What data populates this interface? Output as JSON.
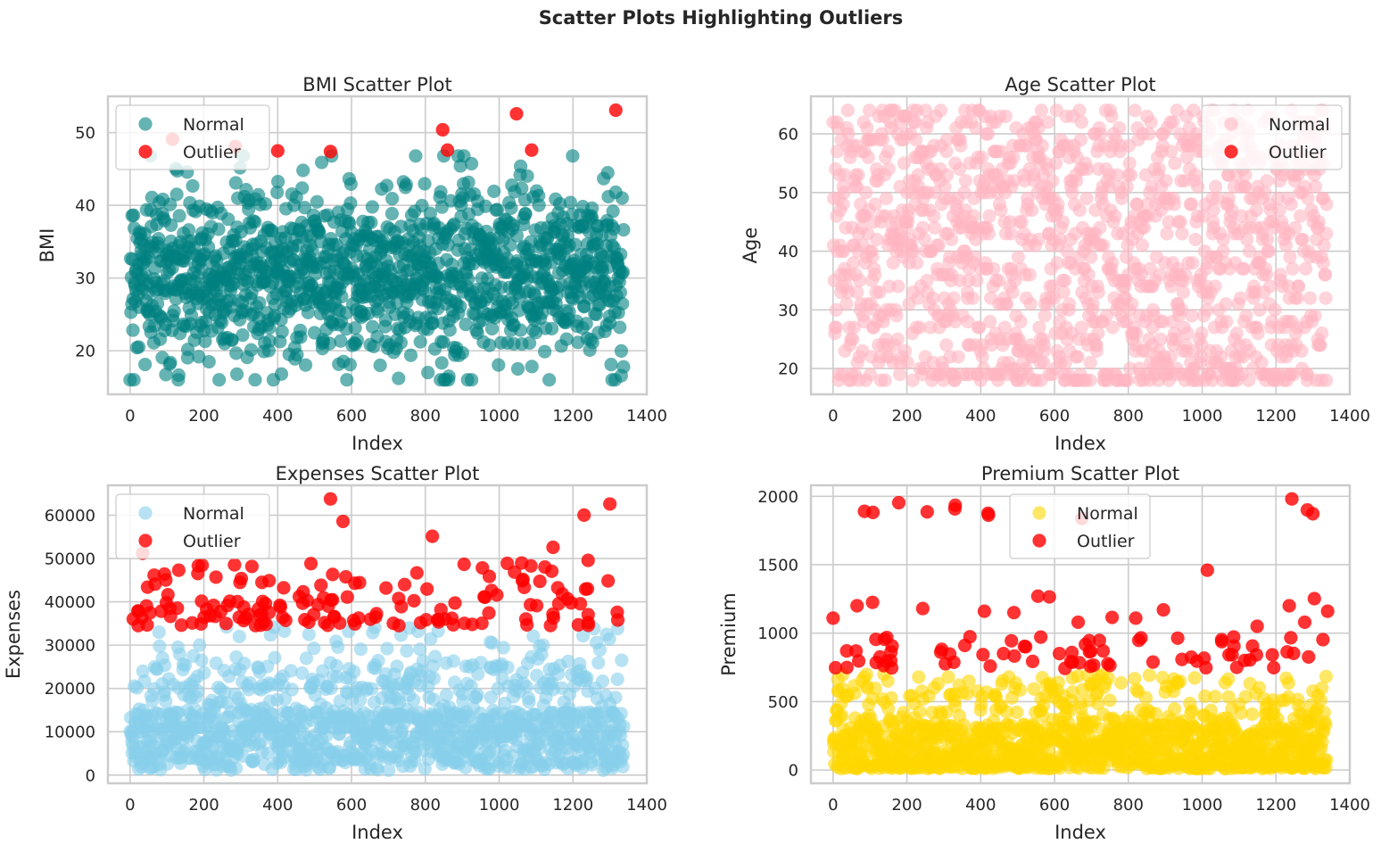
{
  "suptitle": "Scatter Plots Highlighting Outliers",
  "chart_data": [
    {
      "type": "scatter",
      "title": "BMI Scatter Plot",
      "xlabel": "Index",
      "ylabel": "BMI",
      "xlim": [
        -60,
        1400
      ],
      "ylim": [
        14,
        55
      ],
      "xticks": [
        0,
        200,
        400,
        600,
        800,
        1000,
        1200,
        1400
      ],
      "yticks": [
        20,
        30,
        40,
        50
      ],
      "grid": true,
      "legend_position": "upper-left",
      "n_points": 1338,
      "series": [
        {
          "name": "Normal",
          "color": "#008080",
          "alpha": 0.6,
          "sample_points": [
            [
              0,
              33.8
            ],
            [
              20,
              42
            ],
            [
              40,
              31
            ],
            [
              80,
              45
            ],
            [
              120,
              20
            ],
            [
              160,
              16
            ],
            [
              220,
              40
            ],
            [
              290,
              45.5
            ],
            [
              380,
              42
            ],
            [
              420,
              17
            ],
            [
              460,
              47
            ],
            [
              540,
              47
            ],
            [
              560,
              43
            ],
            [
              640,
              42
            ],
            [
              700,
              45
            ],
            [
              820,
              44
            ],
            [
              900,
              20
            ],
            [
              960,
              46
            ],
            [
              1040,
              45.5
            ],
            [
              1100,
              18
            ],
            [
              1160,
              45
            ],
            [
              1220,
              17
            ],
            [
              1300,
              17
            ],
            [
              1330,
              44.5
            ]
          ],
          "y_range_summary": [
            16,
            47
          ]
        },
        {
          "name": "Outlier",
          "color": "#ff0000",
          "alpha": 0.8,
          "points": [
            [
              115,
              49.1
            ],
            [
              285,
              48.1
            ],
            [
              400,
              47.5
            ],
            [
              543,
              47.4
            ],
            [
              847,
              50.4
            ],
            [
              860,
              47.6
            ],
            [
              1047,
              52.6
            ],
            [
              1088,
              47.6
            ],
            [
              1316,
              53.1
            ]
          ]
        }
      ]
    },
    {
      "type": "scatter",
      "title": "Age Scatter Plot",
      "xlabel": "Index",
      "ylabel": "Age",
      "xlim": [
        -60,
        1400
      ],
      "ylim": [
        15.6,
        66.4
      ],
      "xticks": [
        0,
        200,
        400,
        600,
        800,
        1000,
        1200,
        1400
      ],
      "yticks": [
        20,
        30,
        40,
        50,
        60
      ],
      "grid": true,
      "legend_position": "upper-right",
      "n_points": 1338,
      "series": [
        {
          "name": "Normal",
          "color": "#ffb6c1",
          "alpha": 0.6,
          "y_range_summary": [
            18,
            64
          ]
        },
        {
          "name": "Outlier",
          "color": "#ff0000",
          "alpha": 0.8,
          "points": []
        }
      ]
    },
    {
      "type": "scatter",
      "title": "Expenses Scatter Plot",
      "xlabel": "Index",
      "ylabel": "Expenses",
      "xlim": [
        -60,
        1400
      ],
      "ylim": [
        -1900,
        66900
      ],
      "xticks": [
        0,
        200,
        400,
        600,
        800,
        1000,
        1200,
        1400
      ],
      "yticks": [
        0,
        10000,
        20000,
        30000,
        40000,
        50000,
        60000
      ],
      "grid": true,
      "legend_position": "upper-left",
      "n_points": 1338,
      "series": [
        {
          "name": "Normal",
          "color": "#87ceeb",
          "alpha": 0.6,
          "y_range_summary": [
            1100,
            34500
          ]
        },
        {
          "name": "Outlier",
          "color": "#ff0000",
          "alpha": 0.8,
          "points": [
            [
              543,
              63770
            ],
            [
              577,
              58571
            ],
            [
              819,
              55135
            ],
            [
              1146,
              52590
            ],
            [
              1230,
              60021
            ],
            [
              1300,
              62592
            ],
            [
              1241,
              49577
            ],
            [
              34,
              51195
            ],
            [
              490,
              48824
            ],
            [
              283,
              48549
            ],
            [
              330,
              48173
            ],
            [
              905,
              48673
            ],
            [
              1061,
              48970
            ],
            [
              1022,
              48885
            ]
          ],
          "y_range_summary": [
            34500,
            63770
          ]
        }
      ]
    },
    {
      "type": "scatter",
      "title": "Premium Scatter Plot",
      "xlabel": "Index",
      "ylabel": "Premium",
      "xlim": [
        -60,
        1400
      ],
      "ylim": [
        -97,
        2080
      ],
      "xticks": [
        0,
        200,
        400,
        600,
        800,
        1000,
        1200,
        1400
      ],
      "yticks": [
        0,
        500,
        1000,
        1500,
        2000
      ],
      "grid": true,
      "legend_position": "upper-center",
      "n_points": 1338,
      "series": [
        {
          "name": "Normal",
          "color": "#ffd700",
          "alpha": 0.6,
          "y_range_summary": [
            10,
            700
          ]
        },
        {
          "name": "Outlier",
          "color": "#ff0000",
          "alpha": 0.8,
          "points": [
            [
              85,
              1890
            ],
            [
              108,
              1882
            ],
            [
              178,
              1953
            ],
            [
              255,
              1886
            ],
            [
              330,
              1908
            ],
            [
              331,
              1934
            ],
            [
              420,
              1876
            ],
            [
              421,
              1862
            ],
            [
              674,
              1838
            ],
            [
              1014,
              1460
            ],
            [
              1243,
              1981
            ],
            [
              1285,
              1900
            ],
            [
              1300,
              1872
            ],
            [
              1304,
              1252
            ],
            [
              1236,
              1200
            ],
            [
              1340,
              1160
            ],
            [
              0,
              1110
            ],
            [
              65,
              1200
            ],
            [
              107,
              1225
            ],
            [
              243,
              1180
            ],
            [
              555,
              1270
            ],
            [
              586,
              1265
            ],
            [
              756,
              1115
            ],
            [
              820,
              1110
            ],
            [
              895,
              1170
            ],
            [
              1278,
              1080
            ],
            [
              1149,
              1050
            ],
            [
              664,
              1080
            ],
            [
              410,
              1160
            ],
            [
              490,
              1150
            ]
          ],
          "y_range_summary": [
            730,
            1981
          ]
        }
      ]
    }
  ]
}
